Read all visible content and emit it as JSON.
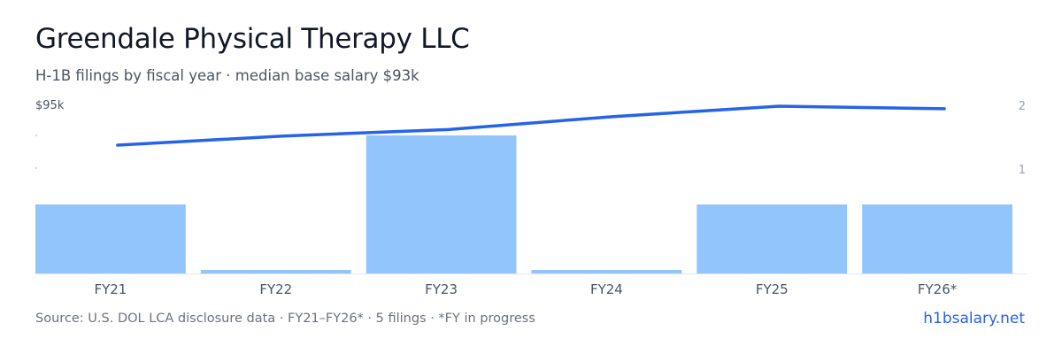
{
  "header": {
    "title": "Greendale Physical Therapy LLC",
    "subtitle": "H-1B filings by fiscal year · median base salary $93k"
  },
  "footer": {
    "source": "Source: U.S. DOL LCA disclosure data · FY21–FY26* · 5 filings · *FY in progress",
    "brand": "h1bsalary.net"
  },
  "colors": {
    "bar": "#93c5fd",
    "line": "#2563eb",
    "axis_text": "#4b5563",
    "right_axis_text": "#94a3b8",
    "baseline": "#e5e7eb"
  },
  "chart_data": {
    "type": "bar",
    "categories": [
      "FY21",
      "FY22",
      "FY23",
      "FY24",
      "FY25",
      "FY26*"
    ],
    "series": [
      {
        "type": "bar",
        "axis": "right",
        "values": [
          1,
          0,
          2,
          0,
          1,
          1
        ]
      },
      {
        "type": "line",
        "axis": "left",
        "values": [
          80,
          83.5,
          86,
          91,
          95,
          94
        ]
      }
    ],
    "left_axis": {
      "label_max": "$95k",
      "max": 95
    },
    "right_axis": {
      "ticks": [
        "2",
        "1"
      ],
      "max": 2
    },
    "grid": false,
    "legend": "none"
  }
}
